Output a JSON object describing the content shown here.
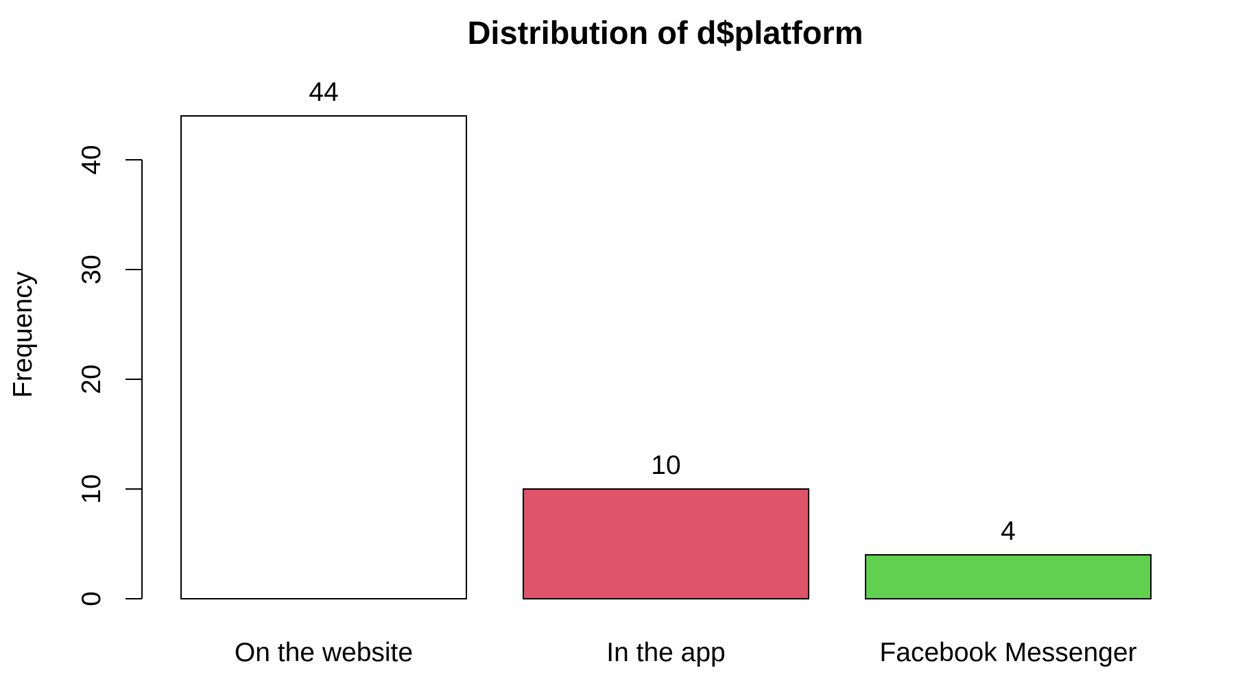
{
  "chart_data": {
    "type": "bar",
    "title": "Distribution of d$platform",
    "xlabel": "",
    "ylabel": "Frequency",
    "categories": [
      "On the website",
      "In the app",
      "Facebook Messenger"
    ],
    "values": [
      44,
      10,
      4
    ],
    "data_labels": [
      "44",
      "10",
      "4"
    ],
    "colors": [
      "#ffffff",
      "#df536b",
      "#61d04f"
    ],
    "ylim": [
      0,
      40
    ],
    "yticks": [
      0,
      10,
      20,
      30,
      40
    ],
    "grid": false,
    "legend": "none"
  }
}
